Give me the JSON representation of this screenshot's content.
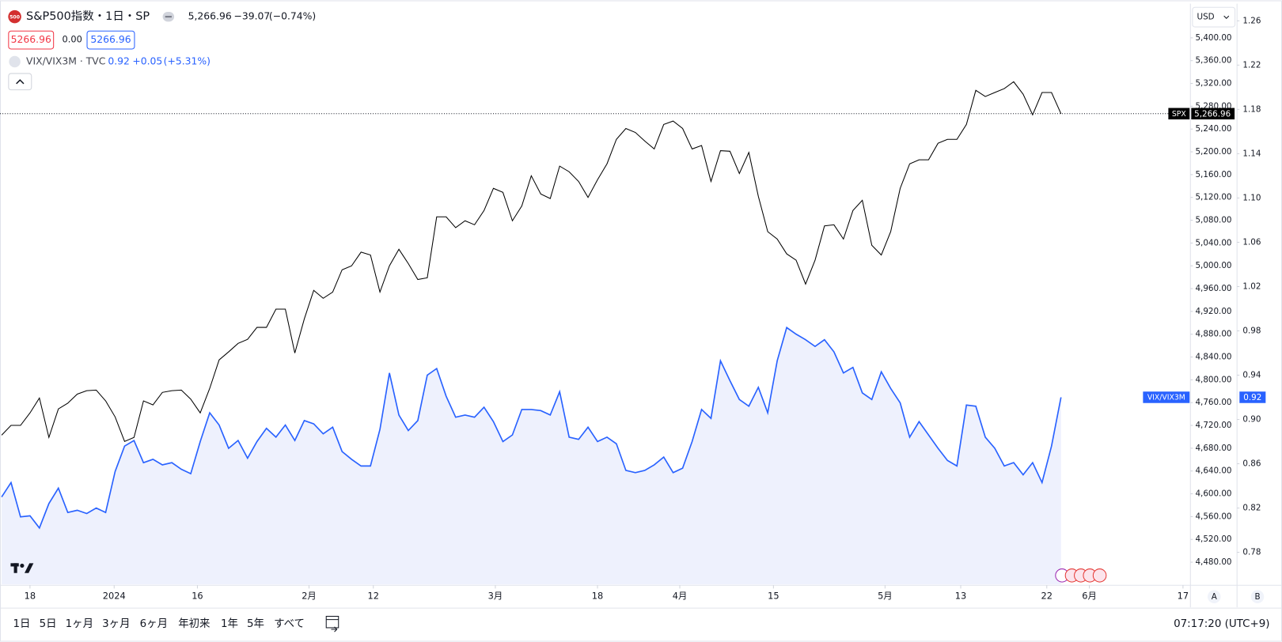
{
  "chart_data": {
    "type": "line",
    "header": {
      "logo": "500",
      "title": "S&P500指数・1日・SP",
      "last": "5,266.96",
      "change": "−39.07",
      "change_pct": "(−0.74%)",
      "bid": "5266.96",
      "spread": "0.00",
      "ask": "5266.96",
      "overlay_title": "VIX/VIX3M · TVC",
      "overlay_last": "0.92",
      "overlay_change": "+0.05",
      "overlay_change_pct": "(+5.31%)"
    },
    "currency": "USD",
    "price_tags": {
      "spx_name": "SPX",
      "spx_last": "5,266.96",
      "vix_name": "VIX/VIX3M",
      "vix_last": "0.92"
    },
    "axis_buttons": [
      "A",
      "B"
    ],
    "toolbar": {
      "ranges": [
        "1日",
        "5日",
        "1ヶ月",
        "3ヶ月",
        "6ヶ月",
        "年初来",
        "1年",
        "5年",
        "すべて"
      ],
      "clock": "07:17:20 (UTC+9)"
    },
    "xlim": [
      -0.17,
      125.6
    ],
    "xticks": [
      {
        "value": 3.0,
        "label": "18"
      },
      {
        "value": 11.9,
        "label": "2024"
      },
      {
        "value": 20.7,
        "label": "16"
      },
      {
        "value": 32.5,
        "label": "2月"
      },
      {
        "value": 39.3,
        "label": "12"
      },
      {
        "value": 52.2,
        "label": "3月"
      },
      {
        "value": 63.0,
        "label": "18"
      },
      {
        "value": 71.7,
        "label": "4月"
      },
      {
        "value": 81.6,
        "label": "15"
      },
      {
        "value": 93.4,
        "label": "5月"
      },
      {
        "value": 101.4,
        "label": "13"
      },
      {
        "value": 110.5,
        "label": "22"
      },
      {
        "value": 115.0,
        "label": "6月"
      },
      {
        "value": 124.9,
        "label": "17"
      }
    ],
    "ylim": [
      4441,
      5460
    ],
    "yticks": [
      {
        "value": 4480,
        "label": "4,480.00"
      },
      {
        "value": 4520,
        "label": "4,520.00"
      },
      {
        "value": 4560,
        "label": "4,560.00"
      },
      {
        "value": 4600,
        "label": "4,600.00"
      },
      {
        "value": 4640,
        "label": "4,640.00"
      },
      {
        "value": 4680,
        "label": "4,680.00"
      },
      {
        "value": 4720,
        "label": "4,720.00"
      },
      {
        "value": 4760,
        "label": "4,760.00"
      },
      {
        "value": 4800,
        "label": "4,800.00"
      },
      {
        "value": 4840,
        "label": "4,840.00"
      },
      {
        "value": 4880,
        "label": "4,880.00"
      },
      {
        "value": 4920,
        "label": "4,920.00"
      },
      {
        "value": 4960,
        "label": "4,960.00"
      },
      {
        "value": 5000,
        "label": "5,000.00"
      },
      {
        "value": 5040,
        "label": "5,040.00"
      },
      {
        "value": 5080,
        "label": "5,080.00"
      },
      {
        "value": 5120,
        "label": "5,120.00"
      },
      {
        "value": 5160,
        "label": "5,160.00"
      },
      {
        "value": 5200,
        "label": "5,200.00"
      },
      {
        "value": 5240,
        "label": "5,240.00"
      },
      {
        "value": 5280,
        "label": "5,280.00"
      },
      {
        "value": 5320,
        "label": "5,320.00"
      },
      {
        "value": 5360,
        "label": "5,360.00"
      },
      {
        "value": 5400,
        "label": "5,400.00"
      }
    ],
    "y2lim": [
      0.751,
      1.2755
    ],
    "y2ticks": [
      0.78,
      0.82,
      0.86,
      {
        "value": 0.9,
        "label": "0.90"
      },
      0.94,
      0.98,
      1.02,
      1.06,
      {
        "value": 1.1,
        "label": "1.10"
      },
      1.14,
      1.18,
      1.22,
      1.26
    ],
    "series": [
      {
        "name": "SPX",
        "color": "#000000",
        "values": [
          4703,
          4720,
          4720,
          4742,
          4768,
          4699,
          4749,
          4759,
          4775,
          4781,
          4782,
          4763,
          4735,
          4692,
          4699,
          4763,
          4756,
          4778,
          4781,
          4782,
          4766,
          4742,
          4785,
          4835,
          4849,
          4864,
          4871,
          4892,
          4892,
          4924,
          4924,
          4847,
          4907,
          4957,
          4943,
          4954,
          4993,
          5000,
          5024,
          5019,
          4954,
          5000,
          5029,
          5004,
          4976,
          4979,
          5086,
          5086,
          5067,
          5079,
          5072,
          5097,
          5136,
          5129,
          5079,
          5105,
          5158,
          5126,
          5118,
          5175,
          5165,
          5148,
          5120,
          5151,
          5179,
          5222,
          5241,
          5234,
          5219,
          5205,
          5248,
          5254,
          5241,
          5205,
          5211,
          5148,
          5202,
          5201,
          5162,
          5199,
          5122,
          5060,
          5047,
          5021,
          5010,
          4968,
          5010,
          5070,
          5072,
          5047,
          5097,
          5115,
          5036,
          5019,
          5060,
          5136,
          5179,
          5186,
          5186,
          5215,
          5222,
          5222,
          5248,
          5308,
          5297,
          5304,
          5311,
          5323,
          5301,
          5265,
          5304,
          5304,
          5266.96
        ]
      },
      {
        "name": "VIX/VIX3M",
        "color": "#2962ff",
        "axis": "y2",
        "area": true,
        "fill": "#eef1fd",
        "values": [
          0.83,
          0.843,
          0.812,
          0.813,
          0.802,
          0.824,
          0.838,
          0.816,
          0.818,
          0.815,
          0.82,
          0.816,
          0.853,
          0.876,
          0.881,
          0.861,
          0.864,
          0.859,
          0.861,
          0.855,
          0.851,
          0.88,
          0.906,
          0.895,
          0.874,
          0.881,
          0.865,
          0.88,
          0.892,
          0.884,
          0.895,
          0.881,
          0.899,
          0.896,
          0.887,
          0.893,
          0.871,
          0.864,
          0.858,
          0.858,
          0.891,
          0.942,
          0.904,
          0.89,
          0.899,
          0.94,
          0.946,
          0.921,
          0.902,
          0.904,
          0.902,
          0.911,
          0.898,
          0.88,
          0.886,
          0.909,
          0.909,
          0.908,
          0.904,
          0.925,
          0.884,
          0.882,
          0.893,
          0.88,
          0.884,
          0.878,
          0.854,
          0.852,
          0.854,
          0.859,
          0.866,
          0.852,
          0.856,
          0.88,
          0.909,
          0.901,
          0.953,
          0.935,
          0.918,
          0.912,
          0.929,
          0.906,
          0.953,
          0.983,
          0.977,
          0.972,
          0.966,
          0.972,
          0.961,
          0.942,
          0.947,
          0.924,
          0.918,
          0.943,
          0.928,
          0.915,
          0.884,
          0.898,
          0.886,
          0.874,
          0.863,
          0.858,
          0.913,
          0.912,
          0.884,
          0.874,
          0.858,
          0.861,
          0.85,
          0.861,
          0.843,
          0.876,
          0.92
        ]
      }
    ]
  }
}
